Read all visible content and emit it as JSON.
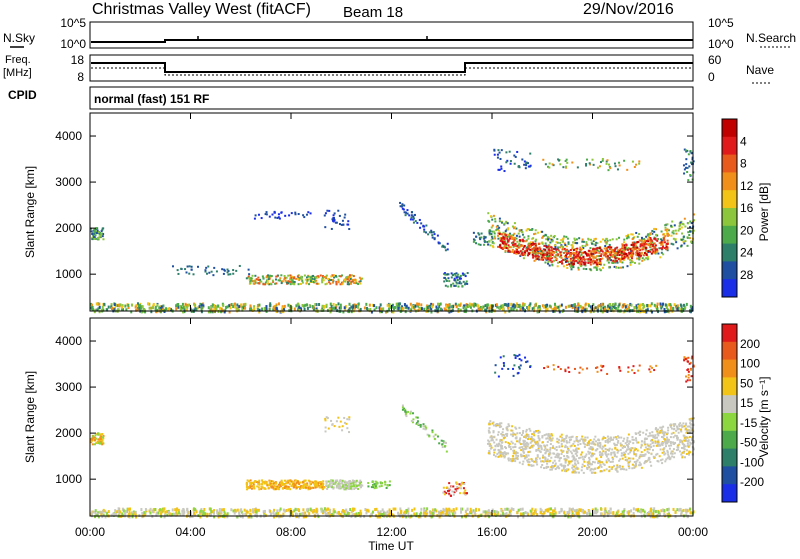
{
  "header": {
    "title": "Christmas Valley West (fitACF)",
    "beam": "Beam 18",
    "date": "29/Nov/2016"
  },
  "top_panel": {
    "left_label": "N.Sky",
    "left_ticks": [
      "10^5",
      "10^0"
    ],
    "right_label": "N.Search",
    "right_ticks": [
      "10^5",
      "10^0"
    ]
  },
  "freq_panel": {
    "left_label_1": "Freq.",
    "left_label_2": "[MHz]",
    "left_ticks": [
      "18",
      "8"
    ],
    "right_ticks": [
      "60",
      "0"
    ],
    "right_label": "Nave"
  },
  "cpid_panel": {
    "label": "CPID",
    "text": "normal (fast) 151 RF"
  },
  "chart_data": [
    {
      "type": "heatmap",
      "name": "power",
      "ylabel": "Slant Range [km]",
      "ylim": [
        200,
        4500
      ],
      "yticks": [
        "1000",
        "2000",
        "3000",
        "4000"
      ],
      "colorbar_label": "Power [dB]",
      "colorbar_ticks": [
        "4",
        "8",
        "12",
        "16",
        "20",
        "24",
        "28"
      ],
      "colors": [
        "#1a2ee8",
        "#1f4fa0",
        "#2e7f6a",
        "#4caa4a",
        "#8cc63c",
        "#f2c417",
        "#f0901a",
        "#e85a1c",
        "#e01a1a",
        "#c00000"
      ]
    },
    {
      "type": "heatmap",
      "name": "velocity",
      "ylabel": "Slant Range [km]",
      "ylim": [
        200,
        4500
      ],
      "yticks": [
        "1000",
        "2000",
        "3000",
        "4000"
      ],
      "xlabel": "Time UT",
      "xticks": [
        "00:00",
        "04:00",
        "08:00",
        "12:00",
        "16:00",
        "20:00",
        "00:00"
      ],
      "colorbar_label": "Velocity [m s⁻¹]",
      "colorbar_ticks": [
        "200",
        "100",
        "50",
        "15",
        "-15",
        "-50",
        "-100",
        "-200"
      ],
      "colors": [
        "#1a2ee8",
        "#1f4fa0",
        "#2e7f6a",
        "#4caa4a",
        "#8cd640",
        "#c8c8c0",
        "#f2c417",
        "#f0901a",
        "#e85a1c",
        "#e01a1a"
      ]
    }
  ]
}
